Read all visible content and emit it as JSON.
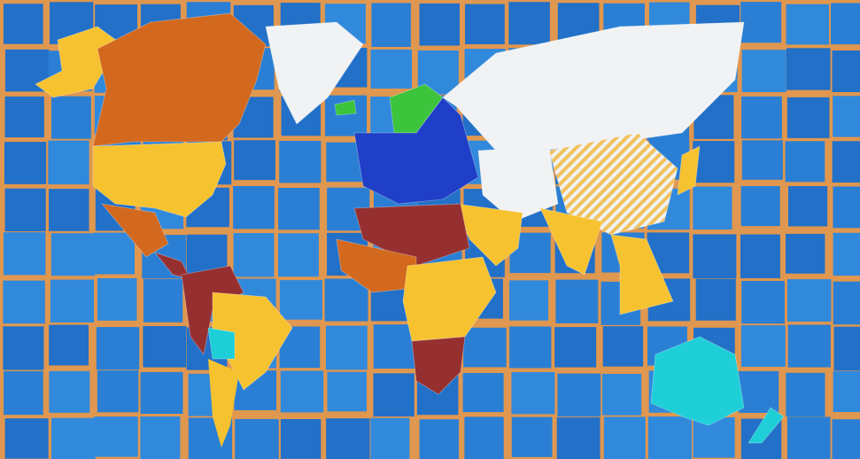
{
  "map": {
    "background_color": "#e0974f",
    "ocean_color": "#2a7fd4",
    "tile_border_color": "#e0974f",
    "region_colors": {
      "yellow": "#f7c230",
      "orange": "#d2691e",
      "white": "#f0f2f4",
      "dark_red": "#963030",
      "blue": "#1f3fc8",
      "cyan": "#1ecfd8",
      "green": "#3cc43c",
      "hatched_yellow": "#f2c15a"
    },
    "regions": [
      {
        "name": "alaska",
        "color": "yellow"
      },
      {
        "name": "canada",
        "color": "orange"
      },
      {
        "name": "united-states",
        "color": "yellow"
      },
      {
        "name": "mexico",
        "color": "orange"
      },
      {
        "name": "central-america",
        "color": "dark_red"
      },
      {
        "name": "greenland",
        "color": "white"
      },
      {
        "name": "iceland",
        "color": "green"
      },
      {
        "name": "scandinavia",
        "color": "green"
      },
      {
        "name": "europe",
        "color": "blue"
      },
      {
        "name": "russia",
        "color": "white"
      },
      {
        "name": "central-asia",
        "color": "white"
      },
      {
        "name": "china",
        "color": "hatched_yellow"
      },
      {
        "name": "india",
        "color": "yellow"
      },
      {
        "name": "middle-east",
        "color": "yellow"
      },
      {
        "name": "north-africa",
        "color": "dark_red"
      },
      {
        "name": "west-africa",
        "color": "orange"
      },
      {
        "name": "central-africa",
        "color": "yellow"
      },
      {
        "name": "southern-africa",
        "color": "dark_red"
      },
      {
        "name": "northern-south-america",
        "color": "dark_red"
      },
      {
        "name": "brazil",
        "color": "yellow"
      },
      {
        "name": "bolivia",
        "color": "cyan"
      },
      {
        "name": "southeast-asia",
        "color": "yellow"
      },
      {
        "name": "japan",
        "color": "yellow"
      },
      {
        "name": "australia",
        "color": "cyan"
      },
      {
        "name": "new-zealand",
        "color": "cyan"
      }
    ]
  }
}
